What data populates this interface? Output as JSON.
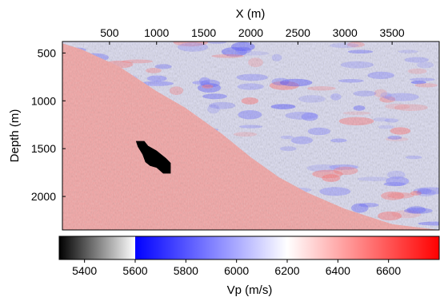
{
  "chart_data": {
    "type": "heatmap",
    "title": "",
    "xlabel": "X (m)",
    "ylabel": "Depth (m)",
    "x_axis_position": "top",
    "xlim": [
      0,
      4000
    ],
    "ylim": [
      2350,
      380
    ],
    "x_ticks": [
      500,
      1000,
      1500,
      2000,
      2500,
      3000,
      3500
    ],
    "y_ticks": [
      500,
      1000,
      1500,
      2000
    ],
    "colorbar": {
      "label": "Vp (m/s)",
      "placement": "bottom",
      "range": [
        5300,
        6800
      ],
      "ticks": [
        5400,
        5600,
        5800,
        6000,
        6200,
        6400,
        6600
      ],
      "segments": [
        {
          "from": 5300,
          "to": 5600,
          "colors": [
            "#000000",
            "#ffffff"
          ]
        },
        {
          "from": 5600,
          "to": 6200,
          "colors": [
            "#0000ff",
            "#ffffff"
          ]
        },
        {
          "from": 6200,
          "to": 6800,
          "colors": [
            "#ffffff",
            "#ff0000"
          ]
        }
      ]
    },
    "regions": [
      {
        "name": "sediment",
        "mean_vp": 6050,
        "variation": 120
      },
      {
        "name": "salt body",
        "vp": 6450
      },
      {
        "name": "anomaly",
        "vp": 5300
      }
    ],
    "salt_boundary": {
      "x": [
        0,
        200,
        600,
        1000,
        1300,
        1700,
        2000,
        2300,
        2600,
        3000,
        3500,
        4000
      ],
      "depth": [
        400,
        460,
        640,
        900,
        1070,
        1350,
        1590,
        1800,
        1960,
        2130,
        2290,
        2350
      ]
    },
    "anomaly_outline": {
      "x": [
        780,
        870,
        910,
        1000,
        1100,
        1150,
        1150,
        1070,
        1000,
        930,
        880,
        850,
        800,
        780
      ],
      "depth": [
        1420,
        1420,
        1470,
        1520,
        1600,
        1650,
        1760,
        1760,
        1700,
        1680,
        1640,
        1560,
        1480,
        1420
      ]
    }
  }
}
